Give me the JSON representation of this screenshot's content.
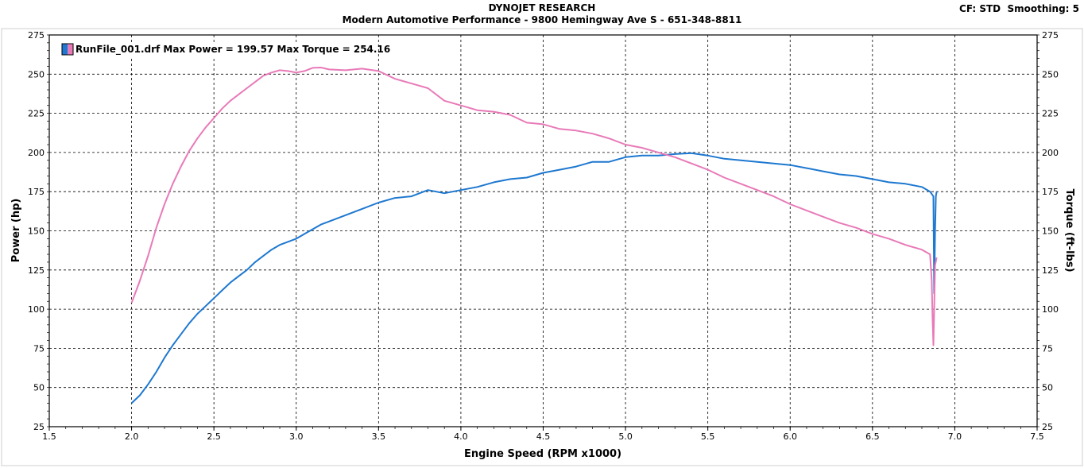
{
  "header": {
    "title": "DYNOJET RESEARCH",
    "subtitle": "Modern Automotive Performance - 9800 Hemingway Ave S - 651-348-8811",
    "cf_label": "CF: STD",
    "smoothing_label": "Smoothing: 5"
  },
  "legend": {
    "run_label": "RunFile_001.drf",
    "max_power_label": "Max Power = 199.57",
    "max_torque_label": "Max Torque = 254.16"
  },
  "chart_data": {
    "type": "line",
    "xlabel": "Engine Speed (RPM x1000)",
    "ylabel": "Power (hp)",
    "y2label": "Torque (ft-lbs)",
    "xlim": [
      1.5,
      7.5
    ],
    "ylim": [
      25,
      275
    ],
    "y2lim": [
      25,
      275
    ],
    "x_ticks": [
      "1.5",
      "2.0",
      "2.5",
      "3.0",
      "3.5",
      "4.0",
      "4.5",
      "5.0",
      "5.5",
      "6.0",
      "6.5",
      "7.0",
      "7.5"
    ],
    "y_ticks": [
      "25",
      "50",
      "75",
      "100",
      "125",
      "150",
      "175",
      "200",
      "225",
      "250",
      "275"
    ],
    "grid": true,
    "legend_position": "top-left",
    "series": [
      {
        "name": "Power",
        "axis": "left",
        "color": "#1e78d0",
        "points": [
          [
            2.0,
            40
          ],
          [
            2.05,
            45
          ],
          [
            2.1,
            52
          ],
          [
            2.15,
            60
          ],
          [
            2.2,
            69
          ],
          [
            2.25,
            77
          ],
          [
            2.3,
            84
          ],
          [
            2.35,
            91
          ],
          [
            2.4,
            97
          ],
          [
            2.45,
            102
          ],
          [
            2.5,
            107
          ],
          [
            2.55,
            112
          ],
          [
            2.6,
            117
          ],
          [
            2.65,
            121
          ],
          [
            2.7,
            125
          ],
          [
            2.75,
            130
          ],
          [
            2.8,
            134
          ],
          [
            2.85,
            138
          ],
          [
            2.9,
            141
          ],
          [
            2.95,
            143
          ],
          [
            3.0,
            145
          ],
          [
            3.05,
            148
          ],
          [
            3.1,
            151
          ],
          [
            3.15,
            154
          ],
          [
            3.2,
            156
          ],
          [
            3.3,
            160
          ],
          [
            3.4,
            164
          ],
          [
            3.5,
            168
          ],
          [
            3.6,
            171
          ],
          [
            3.7,
            172
          ],
          [
            3.8,
            176
          ],
          [
            3.9,
            174
          ],
          [
            4.0,
            176
          ],
          [
            4.1,
            178
          ],
          [
            4.2,
            181
          ],
          [
            4.3,
            183
          ],
          [
            4.4,
            184
          ],
          [
            4.5,
            187
          ],
          [
            4.6,
            189
          ],
          [
            4.7,
            191
          ],
          [
            4.8,
            194
          ],
          [
            4.9,
            194
          ],
          [
            5.0,
            197
          ],
          [
            5.1,
            198
          ],
          [
            5.2,
            198
          ],
          [
            5.3,
            199
          ],
          [
            5.4,
            199.6
          ],
          [
            5.5,
            198
          ],
          [
            5.6,
            196
          ],
          [
            5.7,
            195
          ],
          [
            5.8,
            194
          ],
          [
            5.9,
            193
          ],
          [
            6.0,
            192
          ],
          [
            6.1,
            190
          ],
          [
            6.2,
            188
          ],
          [
            6.3,
            186
          ],
          [
            6.4,
            185
          ],
          [
            6.5,
            183
          ],
          [
            6.6,
            181
          ],
          [
            6.7,
            180
          ],
          [
            6.8,
            178
          ],
          [
            6.85,
            175
          ],
          [
            6.87,
            172
          ],
          [
            6.875,
            110
          ],
          [
            6.88,
            150
          ],
          [
            6.885,
            172
          ],
          [
            6.89,
            175
          ]
        ]
      },
      {
        "name": "Torque",
        "axis": "right",
        "color": "#e87ab8",
        "points": [
          [
            2.0,
            104
          ],
          [
            2.05,
            118
          ],
          [
            2.1,
            134
          ],
          [
            2.15,
            152
          ],
          [
            2.2,
            167
          ],
          [
            2.25,
            180
          ],
          [
            2.3,
            191
          ],
          [
            2.35,
            201
          ],
          [
            2.4,
            209
          ],
          [
            2.45,
            216
          ],
          [
            2.5,
            222
          ],
          [
            2.55,
            228
          ],
          [
            2.6,
            233
          ],
          [
            2.65,
            237
          ],
          [
            2.7,
            241
          ],
          [
            2.75,
            245
          ],
          [
            2.8,
            249
          ],
          [
            2.85,
            251
          ],
          [
            2.9,
            252.5
          ],
          [
            2.95,
            252
          ],
          [
            3.0,
            251
          ],
          [
            3.05,
            252
          ],
          [
            3.1,
            254
          ],
          [
            3.15,
            254.2
          ],
          [
            3.2,
            253
          ],
          [
            3.3,
            252.5
          ],
          [
            3.4,
            253.5
          ],
          [
            3.5,
            252
          ],
          [
            3.6,
            247
          ],
          [
            3.7,
            244
          ],
          [
            3.8,
            241
          ],
          [
            3.9,
            233
          ],
          [
            4.0,
            230
          ],
          [
            4.1,
            227
          ],
          [
            4.2,
            226
          ],
          [
            4.3,
            224
          ],
          [
            4.4,
            219
          ],
          [
            4.5,
            218
          ],
          [
            4.6,
            215
          ],
          [
            4.7,
            214
          ],
          [
            4.8,
            212
          ],
          [
            4.9,
            209
          ],
          [
            5.0,
            205
          ],
          [
            5.1,
            203
          ],
          [
            5.2,
            200
          ],
          [
            5.3,
            197
          ],
          [
            5.4,
            193
          ],
          [
            5.5,
            189
          ],
          [
            5.6,
            184
          ],
          [
            5.7,
            180
          ],
          [
            5.8,
            176
          ],
          [
            5.9,
            172
          ],
          [
            6.0,
            167
          ],
          [
            6.1,
            163
          ],
          [
            6.2,
            159
          ],
          [
            6.3,
            155
          ],
          [
            6.4,
            152
          ],
          [
            6.5,
            148
          ],
          [
            6.6,
            145
          ],
          [
            6.7,
            141
          ],
          [
            6.8,
            138
          ],
          [
            6.85,
            135
          ],
          [
            6.86,
            118
          ],
          [
            6.865,
            95
          ],
          [
            6.87,
            77
          ],
          [
            6.875,
            100
          ],
          [
            6.88,
            128
          ],
          [
            6.89,
            133
          ]
        ]
      }
    ]
  }
}
